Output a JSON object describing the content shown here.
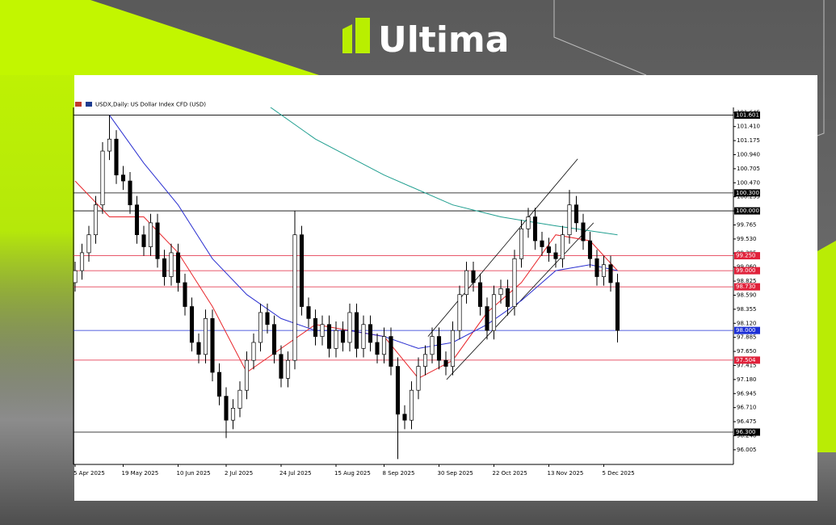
{
  "brand": {
    "logo_text": "Ultima"
  },
  "chart_data": {
    "type": "candlestick",
    "title": "USDX,Daily:  US Dollar Index CFD (USD)",
    "categories": [
      "5 Apr 2025",
      null,
      null,
      null,
      null,
      null,
      null,
      "19 May 2025",
      null,
      null,
      null,
      null,
      null,
      null,
      null,
      "10 Jun 2025",
      null,
      null,
      null,
      null,
      null,
      null,
      "2 Jul 2025",
      null,
      null,
      null,
      null,
      null,
      null,
      null,
      "24 Jul 2025",
      null,
      null,
      null,
      null,
      null,
      null,
      null,
      "15 Aug 2025",
      null,
      null,
      null,
      null,
      null,
      null,
      "8 Sep 2025",
      null,
      null,
      null,
      null,
      null,
      null,
      null,
      "30 Sep 2025",
      null,
      null,
      null,
      null,
      null,
      null,
      null,
      "22 Oct 2025",
      null,
      null,
      null,
      null,
      null,
      null,
      null,
      "13 Nov 2025",
      null,
      null,
      null,
      null,
      null,
      null,
      null,
      "5 Dec 2025",
      null,
      null
    ],
    "open": [
      98.8,
      99.0,
      99.3,
      99.6,
      100.1,
      101.0,
      101.2,
      100.6,
      100.5,
      100.1,
      99.6,
      99.4,
      99.8,
      99.2,
      98.9,
      99.3,
      98.8,
      98.4,
      97.8,
      97.6,
      98.2,
      97.3,
      96.9,
      96.5,
      96.7,
      97.0,
      97.5,
      97.8,
      98.3,
      98.1,
      97.6,
      97.2,
      97.5,
      99.6,
      98.4,
      98.2,
      97.9,
      98.1,
      97.7,
      98.0,
      97.8,
      98.3,
      97.7,
      98.1,
      97.8,
      97.6,
      97.9,
      97.4,
      96.6,
      96.5,
      97.0,
      97.4,
      97.6,
      97.9,
      97.5,
      97.4,
      98.0,
      98.6,
      99.0,
      98.8,
      98.4,
      98.0,
      98.6,
      98.7,
      98.4,
      99.2,
      99.7,
      99.9,
      99.5,
      99.4,
      99.3,
      99.2,
      99.6,
      100.1,
      99.8,
      99.5,
      99.2,
      98.9,
      99.1,
      98.8
    ],
    "high": [
      99.15,
      99.45,
      99.75,
      100.25,
      101.15,
      101.6,
      101.35,
      100.75,
      100.65,
      100.25,
      99.75,
      99.95,
      99.95,
      99.35,
      99.45,
      99.45,
      98.95,
      98.55,
      97.95,
      98.35,
      98.35,
      97.45,
      97.05,
      96.85,
      97.15,
      97.65,
      97.95,
      98.45,
      98.45,
      98.25,
      97.75,
      97.65,
      100.0,
      99.75,
      98.55,
      98.35,
      98.25,
      98.25,
      98.15,
      98.15,
      98.45,
      98.45,
      98.25,
      98.25,
      97.95,
      98.05,
      98.05,
      97.55,
      96.75,
      97.15,
      97.55,
      97.75,
      98.05,
      98.05,
      97.65,
      98.15,
      98.75,
      99.15,
      99.15,
      98.95,
      98.55,
      98.75,
      98.85,
      98.85,
      99.35,
      99.85,
      100.05,
      100.05,
      99.65,
      99.55,
      99.45,
      99.75,
      100.35,
      100.25,
      99.95,
      99.65,
      99.35,
      99.25,
      99.25,
      98.95
    ],
    "low": [
      98.65,
      98.85,
      99.15,
      99.45,
      99.95,
      100.85,
      100.45,
      100.35,
      99.95,
      99.45,
      99.25,
      99.25,
      99.05,
      98.75,
      98.75,
      98.65,
      98.25,
      97.65,
      97.45,
      97.45,
      97.15,
      96.75,
      96.2,
      96.35,
      96.55,
      96.85,
      97.35,
      97.65,
      97.95,
      97.45,
      97.05,
      97.05,
      97.35,
      98.25,
      98.05,
      97.75,
      97.75,
      97.55,
      97.55,
      97.65,
      97.65,
      97.55,
      97.55,
      97.65,
      97.45,
      97.45,
      97.25,
      95.85,
      96.35,
      96.35,
      96.85,
      97.25,
      97.45,
      97.35,
      97.25,
      97.25,
      97.85,
      98.45,
      98.65,
      98.25,
      97.85,
      97.85,
      98.45,
      98.25,
      98.25,
      99.05,
      99.55,
      99.35,
      99.25,
      99.15,
      99.05,
      99.05,
      99.45,
      99.65,
      99.35,
      99.05,
      98.75,
      98.75,
      98.65,
      97.8
    ],
    "close": [
      99.0,
      99.3,
      99.6,
      100.1,
      101.0,
      101.2,
      100.6,
      100.5,
      100.1,
      99.6,
      99.4,
      99.8,
      99.2,
      98.9,
      99.3,
      98.8,
      98.4,
      97.8,
      97.6,
      98.2,
      97.3,
      96.9,
      96.5,
      96.7,
      97.0,
      97.5,
      97.8,
      98.3,
      98.1,
      97.6,
      97.2,
      97.5,
      99.6,
      98.4,
      98.2,
      97.9,
      98.1,
      97.7,
      98.0,
      97.8,
      98.3,
      97.7,
      98.1,
      97.8,
      97.6,
      97.9,
      97.4,
      96.6,
      96.5,
      97.0,
      97.4,
      97.6,
      97.9,
      97.5,
      97.4,
      98.0,
      98.6,
      99.0,
      98.8,
      98.4,
      98.0,
      98.6,
      98.7,
      98.4,
      99.2,
      99.7,
      99.9,
      99.5,
      99.4,
      99.3,
      99.2,
      99.6,
      100.1,
      99.8,
      99.5,
      99.2,
      98.9,
      99.1,
      98.8,
      98.0
    ],
    "bull_color": "#ffffff",
    "bear_color": "#000000",
    "ylim": [
      95.76,
      101.73
    ],
    "yticks": [
      {
        "value": 101.645,
        "label": "101.645"
      },
      {
        "value": 101.41,
        "label": "101.410"
      },
      101.175,
      {
        "value": 100.94,
        "label": "100.940"
      },
      100.705,
      {
        "value": 100.47,
        "label": "100.470"
      },
      100.235,
      {
        "value": 100,
        "label": "100.000"
      },
      99.765,
      {
        "value": 99.53,
        "label": "99.530"
      },
      99.295,
      {
        "value": 99.06,
        "label": "99.060"
      },
      98.825,
      {
        "value": 98.59,
        "label": "98.590"
      },
      98.355,
      {
        "value": 98.12,
        "label": "98.120"
      },
      97.885,
      {
        "value": 97.65,
        "label": "97.650"
      },
      97.415,
      {
        "value": 97.18,
        "label": "97.180"
      },
      96.945,
      {
        "value": 96.71,
        "label": "96.710"
      },
      96.475,
      {
        "value": 96.24,
        "label": "96.240"
      },
      96.005
    ],
    "levels": [
      {
        "value": 101.601,
        "label": "101.601",
        "color": "#000000"
      },
      {
        "value": 100.3,
        "label": "100.300",
        "color": "#000000"
      },
      {
        "value": 100,
        "label": "100.000",
        "color": "#000000"
      },
      {
        "value": 99.25,
        "label": "99.250",
        "color": "#e0213a"
      },
      {
        "value": 99,
        "label": "99.000",
        "color": "#e0213a"
      },
      {
        "value": 98.73,
        "label": "98.730",
        "color": "#e0213a"
      },
      {
        "value": 98,
        "label": "98.000",
        "color": "#1c2fd6"
      },
      {
        "value": 97.504,
        "label": "97.504",
        "color": "#e0213a"
      },
      {
        "value": 96.3,
        "label": "96.300",
        "color": "#000000"
      }
    ],
    "overlays": [
      {
        "color": "#e8262b",
        "x": [
          0,
          5,
          10,
          15,
          20,
          25,
          30,
          35,
          40,
          45,
          50,
          55,
          60,
          65,
          70,
          75,
          79
        ],
        "values": [
          100.5,
          99.9,
          99.9,
          99.3,
          98.4,
          97.3,
          97.7,
          98.1,
          98.0,
          97.9,
          97.2,
          97.5,
          98.3,
          98.8,
          99.6,
          99.5,
          99.0
        ]
      },
      {
        "color": "#2a2fd0",
        "x": [
          5,
          10,
          15,
          20,
          25,
          30,
          35,
          40,
          45,
          50,
          55,
          60,
          65,
          70,
          75,
          79
        ],
        "values": [
          101.6,
          100.8,
          100.1,
          99.2,
          98.6,
          98.2,
          98.0,
          98.0,
          97.9,
          97.7,
          97.8,
          98.1,
          98.5,
          99.0,
          99.1,
          99.0
        ]
      },
      {
        "color": "#1f9e8f",
        "x": [
          27,
          35,
          45,
          55,
          62,
          70,
          79
        ],
        "values": [
          101.85,
          101.2,
          100.6,
          100.1,
          99.9,
          99.75,
          99.6
        ]
      }
    ],
    "trendlines": [
      {
        "color": "#000000",
        "x": [
          51.4,
          73.2
        ],
        "values": [
          97.9,
          100.87
        ]
      },
      {
        "color": "#000000",
        "x": [
          54.1,
          75.5
        ],
        "values": [
          97.18,
          99.8
        ]
      }
    ]
  }
}
